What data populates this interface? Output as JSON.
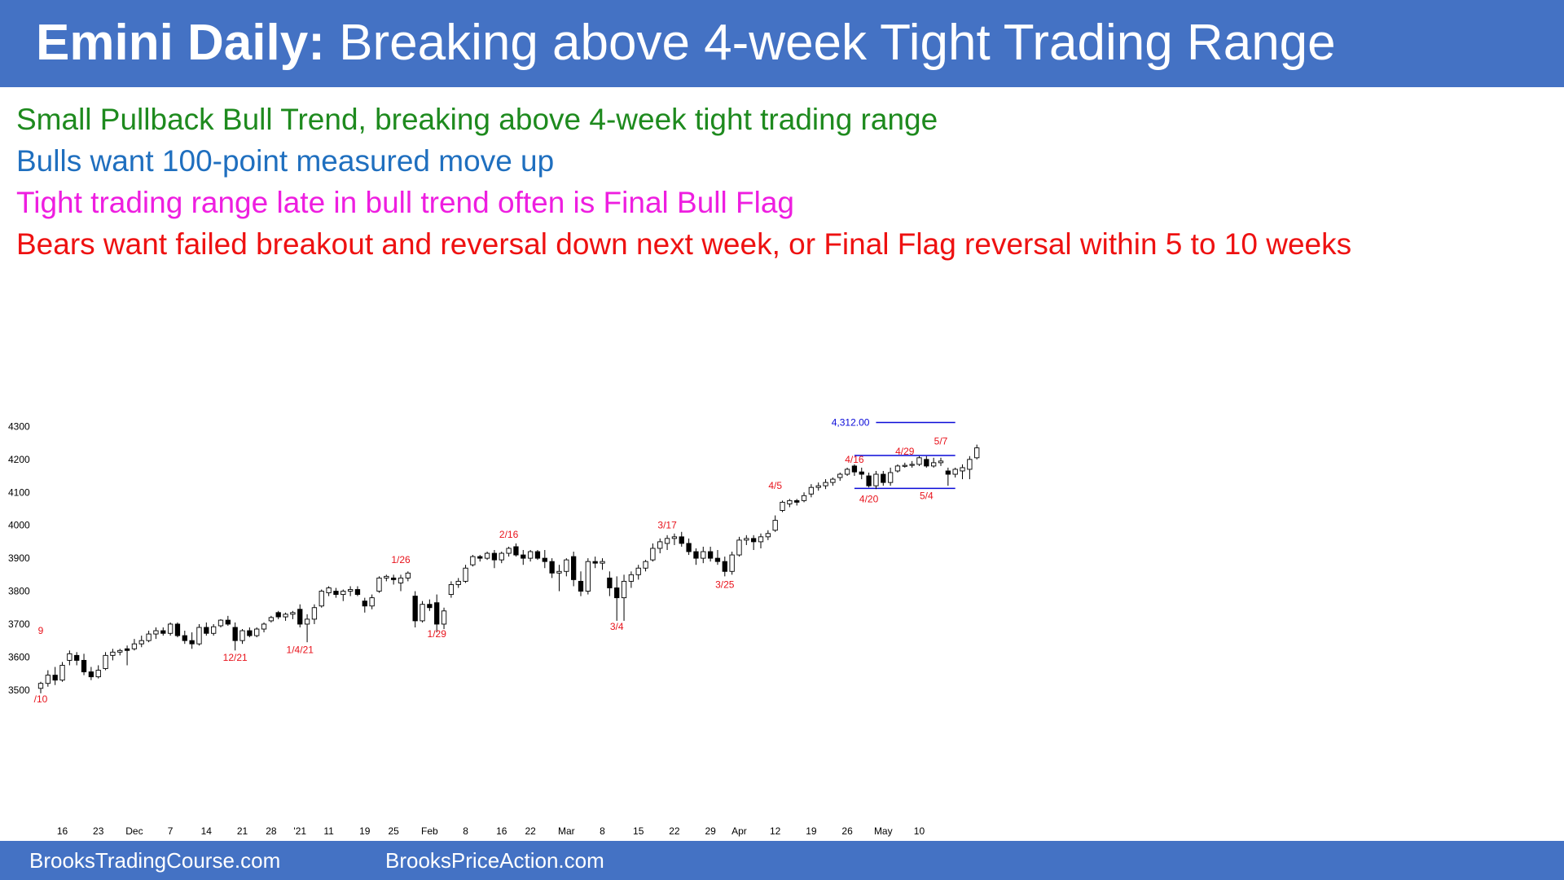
{
  "header": {
    "title_bold": "Emini Daily:",
    "title_rest": " Breaking above 4-week Tight Trading Range",
    "background": "#4472c4"
  },
  "lines": [
    {
      "text": "Small Pullback Bull Trend, breaking above 4-week tight trading range",
      "color": "#1e8a1e"
    },
    {
      "text": "Bulls want 100-point measured move up",
      "color": "#1f6fbf"
    },
    {
      "text": "Tight trading range late in bull trend often is Final Bull Flag",
      "color": "#ee1ee0"
    },
    {
      "text": "Bears want failed breakout and reversal down next week, or Final Flag reversal within 5 to 10 weeks",
      "color": "#ee1111"
    }
  ],
  "footer": {
    "left": "BrooksTradingCourse.com",
    "right": "BrooksPriceAction.com",
    "background": "#4472c4"
  },
  "chart_data": {
    "type": "candlestick",
    "y_ticks": [
      "3500",
      "3600",
      "3700",
      "3800",
      "3900",
      "4000",
      "4100",
      "4200",
      "4300"
    ],
    "ylim": [
      3455,
      4395
    ],
    "x_labels": [
      {
        "text": "16",
        "i": 3
      },
      {
        "text": "23",
        "i": 8
      },
      {
        "text": "Dec",
        "i": 13
      },
      {
        "text": "7",
        "i": 18
      },
      {
        "text": "14",
        "i": 23
      },
      {
        "text": "21",
        "i": 28
      },
      {
        "text": "28",
        "i": 32
      },
      {
        "text": "'21",
        "i": 36
      },
      {
        "text": "11",
        "i": 40
      },
      {
        "text": "19",
        "i": 45
      },
      {
        "text": "25",
        "i": 49
      },
      {
        "text": "Feb",
        "i": 54
      },
      {
        "text": "8",
        "i": 59
      },
      {
        "text": "16",
        "i": 64
      },
      {
        "text": "22",
        "i": 68
      },
      {
        "text": "Mar",
        "i": 73
      },
      {
        "text": "8",
        "i": 78
      },
      {
        "text": "15",
        "i": 83
      },
      {
        "text": "22",
        "i": 88
      },
      {
        "text": "29",
        "i": 93
      },
      {
        "text": "Apr",
        "i": 97
      },
      {
        "text": "12",
        "i": 102
      },
      {
        "text": "19",
        "i": 107
      },
      {
        "text": "26",
        "i": 112
      },
      {
        "text": "May",
        "i": 117
      },
      {
        "text": "10",
        "i": 122
      }
    ],
    "candles": [
      [
        3505,
        3525,
        3490,
        3520
      ],
      [
        3520,
        3560,
        3510,
        3545
      ],
      [
        3545,
        3570,
        3515,
        3530
      ],
      [
        3530,
        3585,
        3525,
        3575
      ],
      [
        3590,
        3620,
        3575,
        3610
      ],
      [
        3605,
        3615,
        3575,
        3590
      ],
      [
        3590,
        3610,
        3545,
        3555
      ],
      [
        3555,
        3570,
        3530,
        3540
      ],
      [
        3540,
        3575,
        3535,
        3560
      ],
      [
        3565,
        3615,
        3560,
        3605
      ],
      [
        3605,
        3625,
        3590,
        3615
      ],
      [
        3615,
        3625,
        3605,
        3620
      ],
      [
        3625,
        3635,
        3575,
        3620
      ],
      [
        3625,
        3655,
        3620,
        3640
      ],
      [
        3640,
        3665,
        3630,
        3650
      ],
      [
        3650,
        3680,
        3645,
        3670
      ],
      [
        3670,
        3690,
        3655,
        3680
      ],
      [
        3680,
        3690,
        3665,
        3672
      ],
      [
        3672,
        3705,
        3665,
        3700
      ],
      [
        3700,
        3705,
        3660,
        3665
      ],
      [
        3665,
        3680,
        3640,
        3650
      ],
      [
        3650,
        3675,
        3625,
        3640
      ],
      [
        3640,
        3700,
        3635,
        3690
      ],
      [
        3690,
        3705,
        3665,
        3672
      ],
      [
        3672,
        3700,
        3665,
        3692
      ],
      [
        3695,
        3715,
        3690,
        3712
      ],
      [
        3712,
        3725,
        3695,
        3700
      ],
      [
        3690,
        3705,
        3620,
        3650
      ],
      [
        3650,
        3685,
        3640,
        3680
      ],
      [
        3680,
        3690,
        3660,
        3665
      ],
      [
        3665,
        3690,
        3660,
        3685
      ],
      [
        3685,
        3705,
        3675,
        3700
      ],
      [
        3710,
        3725,
        3705,
        3720
      ],
      [
        3735,
        3740,
        3715,
        3722
      ],
      [
        3722,
        3735,
        3710,
        3730
      ],
      [
        3730,
        3740,
        3715,
        3735
      ],
      [
        3745,
        3760,
        3690,
        3700
      ],
      [
        3700,
        3730,
        3645,
        3715
      ],
      [
        3715,
        3760,
        3700,
        3750
      ],
      [
        3755,
        3805,
        3750,
        3800
      ],
      [
        3795,
        3815,
        3785,
        3810
      ],
      [
        3800,
        3810,
        3780,
        3790
      ],
      [
        3790,
        3805,
        3770,
        3800
      ],
      [
        3800,
        3815,
        3785,
        3805
      ],
      [
        3805,
        3815,
        3785,
        3790
      ],
      [
        3770,
        3780,
        3735,
        3755
      ],
      [
        3755,
        3790,
        3745,
        3780
      ],
      [
        3800,
        3845,
        3795,
        3840
      ],
      [
        3840,
        3850,
        3830,
        3845
      ],
      [
        3840,
        3850,
        3820,
        3835
      ],
      [
        3825,
        3850,
        3800,
        3840
      ],
      [
        3840,
        3860,
        3830,
        3855
      ],
      [
        3785,
        3800,
        3690,
        3710
      ],
      [
        3710,
        3770,
        3705,
        3760
      ],
      [
        3760,
        3775,
        3740,
        3750
      ],
      [
        3765,
        3790,
        3675,
        3700
      ],
      [
        3700,
        3750,
        3685,
        3740
      ],
      [
        3790,
        3830,
        3780,
        3820
      ],
      [
        3820,
        3840,
        3810,
        3830
      ],
      [
        3830,
        3880,
        3825,
        3870
      ],
      [
        3880,
        3910,
        3875,
        3905
      ],
      [
        3905,
        3910,
        3890,
        3900
      ],
      [
        3900,
        3920,
        3895,
        3915
      ],
      [
        3915,
        3925,
        3870,
        3895
      ],
      [
        3895,
        3920,
        3885,
        3915
      ],
      [
        3915,
        3935,
        3905,
        3930
      ],
      [
        3935,
        3945,
        3905,
        3910
      ],
      [
        3910,
        3925,
        3880,
        3900
      ],
      [
        3900,
        3925,
        3890,
        3920
      ],
      [
        3920,
        3925,
        3895,
        3900
      ],
      [
        3900,
        3925,
        3870,
        3890
      ],
      [
        3890,
        3900,
        3840,
        3855
      ],
      [
        3855,
        3880,
        3800,
        3860
      ],
      [
        3860,
        3900,
        3845,
        3895
      ],
      [
        3905,
        3920,
        3815,
        3835
      ],
      [
        3830,
        3860,
        3785,
        3800
      ],
      [
        3800,
        3900,
        3790,
        3890
      ],
      [
        3890,
        3905,
        3870,
        3885
      ],
      [
        3885,
        3900,
        3865,
        3890
      ],
      [
        3840,
        3860,
        3785,
        3810
      ],
      [
        3810,
        3845,
        3710,
        3780
      ],
      [
        3780,
        3850,
        3710,
        3830
      ],
      [
        3830,
        3860,
        3810,
        3850
      ],
      [
        3850,
        3880,
        3835,
        3870
      ],
      [
        3870,
        3895,
        3860,
        3890
      ],
      [
        3895,
        3945,
        3890,
        3930
      ],
      [
        3930,
        3960,
        3915,
        3950
      ],
      [
        3945,
        3970,
        3925,
        3960
      ],
      [
        3960,
        3975,
        3940,
        3965
      ],
      [
        3965,
        3980,
        3935,
        3945
      ],
      [
        3945,
        3960,
        3910,
        3920
      ],
      [
        3920,
        3930,
        3880,
        3900
      ],
      [
        3900,
        3935,
        3885,
        3920
      ],
      [
        3920,
        3935,
        3890,
        3900
      ],
      [
        3900,
        3925,
        3880,
        3890
      ],
      [
        3890,
        3905,
        3845,
        3860
      ],
      [
        3860,
        3920,
        3850,
        3910
      ],
      [
        3910,
        3965,
        3905,
        3955
      ],
      [
        3955,
        3970,
        3940,
        3960
      ],
      [
        3960,
        3970,
        3925,
        3950
      ],
      [
        3950,
        3975,
        3930,
        3965
      ],
      [
        3965,
        3985,
        3955,
        3975
      ],
      [
        3985,
        4030,
        3980,
        4015
      ],
      [
        4045,
        4075,
        4040,
        4070
      ],
      [
        4065,
        4080,
        4055,
        4075
      ],
      [
        4075,
        4080,
        4060,
        4070
      ],
      [
        4075,
        4100,
        4070,
        4090
      ],
      [
        4095,
        4125,
        4085,
        4115
      ],
      [
        4115,
        4130,
        4105,
        4120
      ],
      [
        4120,
        4140,
        4110,
        4130
      ],
      [
        4130,
        4145,
        4120,
        4140
      ],
      [
        4145,
        4160,
        4135,
        4155
      ],
      [
        4155,
        4175,
        4150,
        4170
      ],
      [
        4180,
        4185,
        4150,
        4162
      ],
      [
        4162,
        4175,
        4140,
        4155
      ],
      [
        4150,
        4160,
        4115,
        4120
      ],
      [
        4120,
        4165,
        4110,
        4155
      ],
      [
        4155,
        4165,
        4120,
        4130
      ],
      [
        4130,
        4175,
        4120,
        4160
      ],
      [
        4165,
        4185,
        4160,
        4180
      ],
      [
        4180,
        4190,
        4175,
        4182
      ],
      [
        4182,
        4195,
        4175,
        4185
      ],
      [
        4185,
        4210,
        4180,
        4205
      ],
      [
        4200,
        4210,
        4175,
        4180
      ],
      [
        4180,
        4205,
        4175,
        4190
      ],
      [
        4190,
        4205,
        4180,
        4195
      ],
      [
        4165,
        4175,
        4120,
        4155
      ],
      [
        4155,
        4175,
        4145,
        4170
      ],
      [
        4165,
        4185,
        4140,
        4175
      ],
      [
        4170,
        4210,
        4140,
        4200
      ],
      [
        4205,
        4245,
        4200,
        4235
      ]
    ],
    "annotations": [
      {
        "text": "/10",
        "i": 0,
        "y": 3462,
        "color": "#e8121b"
      },
      {
        "text": "9",
        "i": 0,
        "y": 3670,
        "color": "#e8121b"
      },
      {
        "text": "12/21",
        "i": 27,
        "y": 3588,
        "color": "#e8121b"
      },
      {
        "text": "1/4/21",
        "i": 36,
        "y": 3612,
        "color": "#e8121b"
      },
      {
        "text": "1/26",
        "i": 50,
        "y": 3885,
        "color": "#e8121b"
      },
      {
        "text": "1/29",
        "i": 55,
        "y": 3660,
        "color": "#e8121b"
      },
      {
        "text": "2/16",
        "i": 65,
        "y": 3962,
        "color": "#e8121b"
      },
      {
        "text": "3/4",
        "i": 80,
        "y": 3682,
        "color": "#e8121b"
      },
      {
        "text": "3/17",
        "i": 87,
        "y": 3990,
        "color": "#e8121b"
      },
      {
        "text": "3/25",
        "i": 95,
        "y": 3810,
        "color": "#e8121b"
      },
      {
        "text": "4/5",
        "i": 102,
        "y": 4110,
        "color": "#e8121b"
      },
      {
        "text": "4/16",
        "i": 113,
        "y": 4190,
        "color": "#e8121b"
      },
      {
        "text": "4/20",
        "i": 115,
        "y": 4070,
        "color": "#e8121b"
      },
      {
        "text": "4/29",
        "i": 120,
        "y": 4215,
        "color": "#e8121b"
      },
      {
        "text": "5/4",
        "i": 123,
        "y": 4080,
        "color": "#e8121b"
      },
      {
        "text": "5/7",
        "i": 125,
        "y": 4245,
        "color": "#e8121b"
      }
    ],
    "levels": [
      {
        "y": 4312,
        "label": "4,312.00",
        "color": "#0a0ad8",
        "from_i": 116,
        "to_i": 127
      },
      {
        "y": 4212,
        "label": "",
        "color": "#0a0ad8",
        "from_i": 113,
        "to_i": 127
      },
      {
        "y": 4112,
        "label": "",
        "color": "#0a0ad8",
        "from_i": 113,
        "to_i": 127
      }
    ],
    "candle_up_color": "#ffffff",
    "candle_down_color": "#000000"
  }
}
